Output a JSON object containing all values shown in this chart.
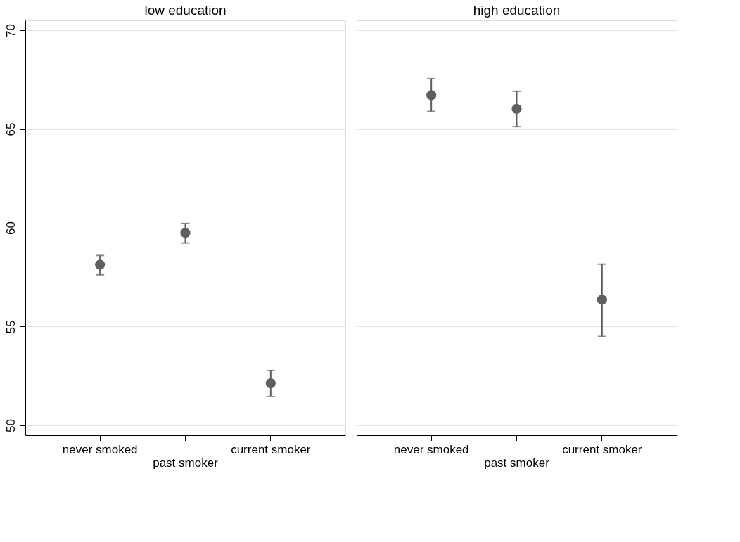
{
  "chart_data": [
    {
      "type": "scatter",
      "title": "low education",
      "categories": [
        "never smoked",
        "past smoker",
        "current smoker"
      ],
      "series": [
        {
          "color": "#5f5f5f",
          "values": [
            58.13,
            59.74,
            52.13
          ],
          "errors": [
            [
              57.62,
              58.6
            ],
            [
              59.23,
              60.22
            ],
            [
              51.46,
              52.78
            ]
          ]
        }
      ],
      "ylim": [
        49.5,
        70.5
      ],
      "yticks": [
        50,
        55,
        60,
        65,
        70
      ],
      "grid": "y",
      "marker": "circle"
    },
    {
      "type": "scatter",
      "title": "high education",
      "categories": [
        "never smoked",
        "past smoker",
        "current smoker"
      ],
      "series": [
        {
          "color": "#5f5f5f",
          "values": [
            66.71,
            66.02,
            56.36
          ],
          "errors": [
            [
              65.89,
              67.55
            ],
            [
              65.12,
              66.91
            ],
            [
              54.5,
              58.16
            ]
          ]
        }
      ],
      "ylim": [
        49.5,
        70.5
      ],
      "yticks": [
        50,
        55,
        60,
        65,
        70
      ],
      "grid": "y",
      "marker": "circle",
      "tick_labels": "x"
    }
  ]
}
